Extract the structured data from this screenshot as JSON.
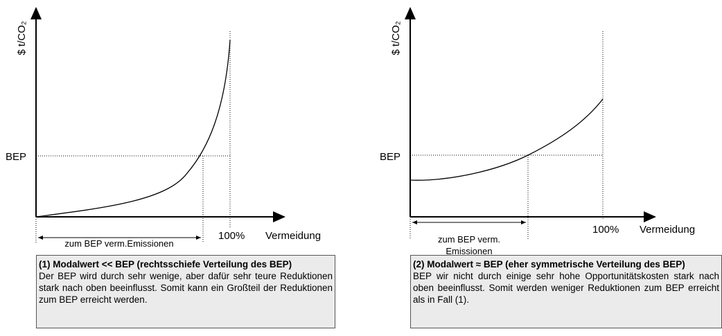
{
  "panels": [
    {
      "axis_label": "$ t/CO₂",
      "bep_label": "BEP",
      "range_label": [
        "zum BEP verm.Emissionen"
      ],
      "full_label": "100%",
      "x_label": "Vermeidung",
      "box": {
        "title": "(1) Modalwert  << BEP  (rechtsschiefe Verteilung des BEP)",
        "text": "Der BEP wird durch sehr wenige, aber dafür sehr teure Reduktionen stark nach oben beeinflusst. Somit kann ein Großteil der Reduktionen zum BEP erreicht werden."
      }
    },
    {
      "axis_label": "$ t/CO₂",
      "bep_label": "BEP",
      "range_label": [
        "zum BEP verm.",
        "Emissionen"
      ],
      "full_label": "100%",
      "x_label": "Vermeidung",
      "box": {
        "title": "(2)  Modalwert ≈ BEP (eher symmetrische Verteilung des BEP)",
        "text": "BEP wir nicht durch einige sehr hohe Opportunitätskosten stark nach oben beeinflusst. Somit werden weniger Reduktionen zum BEP erreicht als in Fall (1)."
      }
    }
  ]
}
